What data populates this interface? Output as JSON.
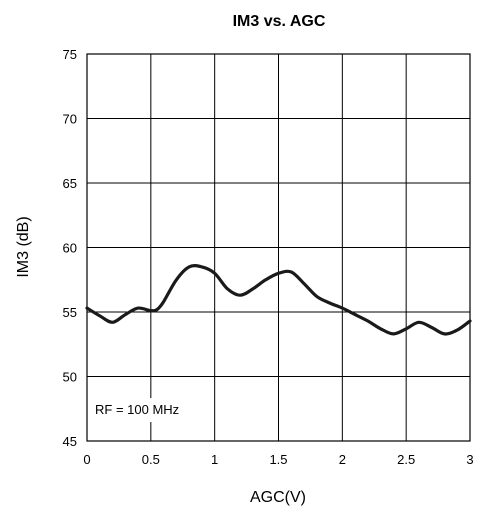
{
  "chart_data": {
    "type": "line",
    "title": "IM3 vs. AGC",
    "xlabel": "AGC(V)",
    "ylabel": "IM3 (dB)",
    "xlim": [
      0,
      3
    ],
    "ylim": [
      45,
      75
    ],
    "x_ticks": [
      "0",
      "0.5",
      "1",
      "1.5",
      "2",
      "2.5",
      "3"
    ],
    "y_ticks": [
      "45",
      "50",
      "55",
      "60",
      "65",
      "70",
      "75"
    ],
    "grid": true,
    "annotation": "RF = 100 MHz",
    "series": [
      {
        "color": "#1a1a1a",
        "x": [
          0,
          0.1,
          0.2,
          0.3,
          0.4,
          0.5,
          0.55,
          0.6,
          0.7,
          0.8,
          0.9,
          1.0,
          1.1,
          1.2,
          1.3,
          1.4,
          1.5,
          1.6,
          1.7,
          1.8,
          1.9,
          2.0,
          2.1,
          2.2,
          2.3,
          2.4,
          2.5,
          2.6,
          2.7,
          2.8,
          2.9,
          3.0
        ],
        "y": [
          55.3,
          54.7,
          54.2,
          54.8,
          55.3,
          55.1,
          55.2,
          55.8,
          57.5,
          58.5,
          58.5,
          58.0,
          56.8,
          56.3,
          56.8,
          57.5,
          58.0,
          58.1,
          57.2,
          56.2,
          55.7,
          55.3,
          54.8,
          54.3,
          53.7,
          53.3,
          53.7,
          54.2,
          53.8,
          53.3,
          53.6,
          54.3
        ]
      }
    ]
  }
}
